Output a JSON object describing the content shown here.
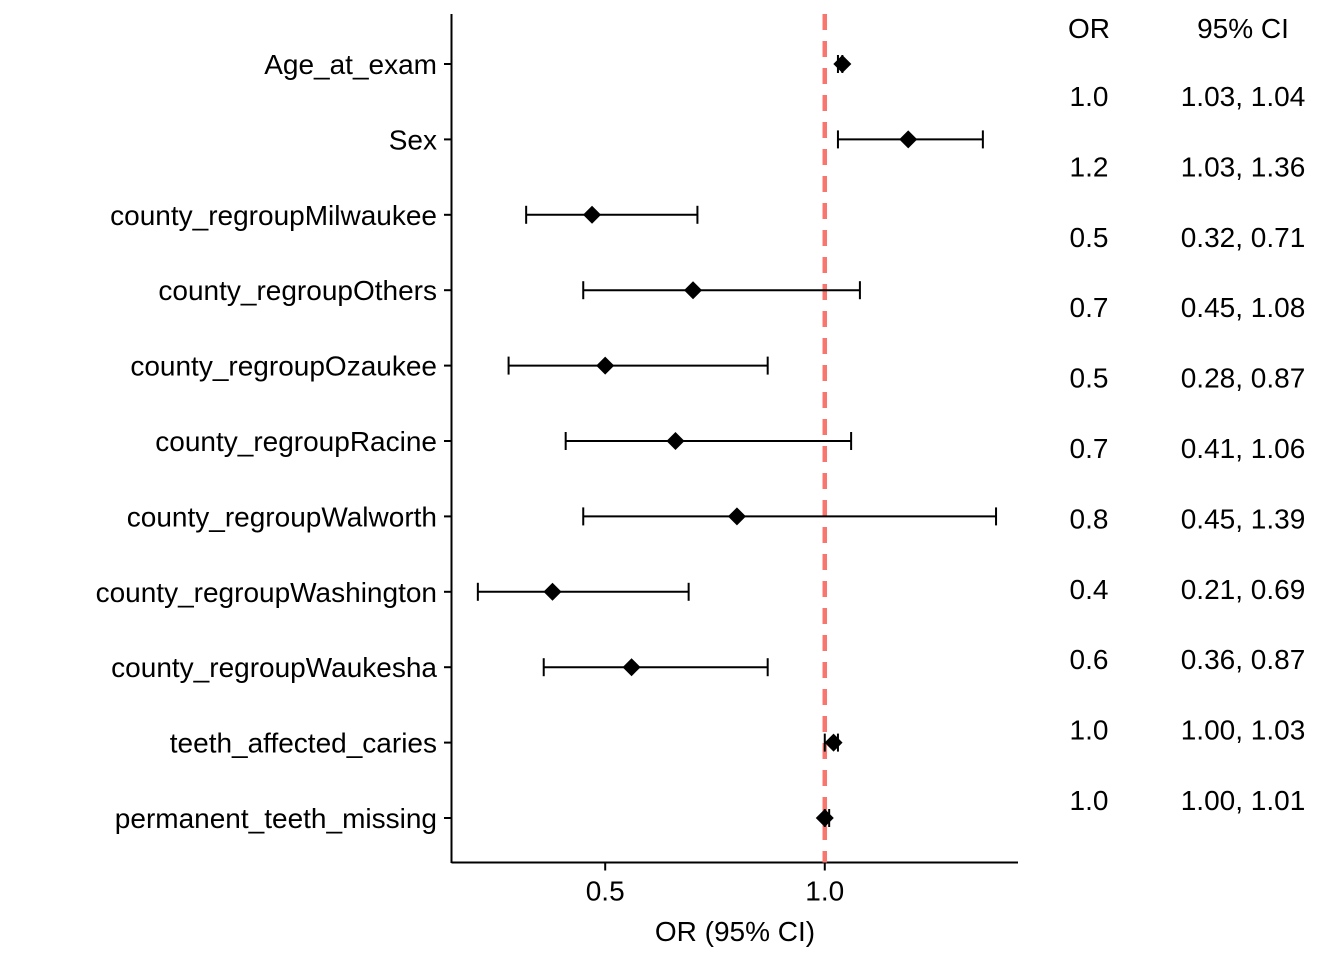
{
  "chart_data": {
    "type": "forest",
    "xlabel": "OR (95% CI)",
    "xlim": [
      0.15,
      1.44
    ],
    "x_ticks": [
      {
        "value": 0.5,
        "label": "0.5"
      },
      {
        "value": 1.0,
        "label": "1.0"
      }
    ],
    "reference_line": {
      "value": 1.0,
      "color": "#F8766D",
      "style": "dashed"
    },
    "columns": {
      "or_header": "OR",
      "ci_header": "95% CI"
    },
    "rows": [
      {
        "label": "Age_at_exam",
        "or": 1.04,
        "lower": 1.03,
        "upper": 1.04,
        "or_text": "1.0",
        "ci_text": "1.03, 1.04"
      },
      {
        "label": "Sex",
        "or": 1.19,
        "lower": 1.03,
        "upper": 1.36,
        "or_text": "1.2",
        "ci_text": "1.03, 1.36"
      },
      {
        "label": "county_regroupMilwaukee",
        "or": 0.47,
        "lower": 0.32,
        "upper": 0.71,
        "or_text": "0.5",
        "ci_text": "0.32, 0.71"
      },
      {
        "label": "county_regroupOthers",
        "or": 0.7,
        "lower": 0.45,
        "upper": 1.08,
        "or_text": "0.7",
        "ci_text": "0.45, 1.08"
      },
      {
        "label": "county_regroupOzaukee",
        "or": 0.5,
        "lower": 0.28,
        "upper": 0.87,
        "or_text": "0.5",
        "ci_text": "0.28, 0.87"
      },
      {
        "label": "county_regroupRacine",
        "or": 0.66,
        "lower": 0.41,
        "upper": 1.06,
        "or_text": "0.7",
        "ci_text": "0.41, 1.06"
      },
      {
        "label": "county_regroupWalworth",
        "or": 0.8,
        "lower": 0.45,
        "upper": 1.39,
        "or_text": "0.8",
        "ci_text": "0.45, 1.39"
      },
      {
        "label": "county_regroupWashington",
        "or": 0.38,
        "lower": 0.21,
        "upper": 0.69,
        "or_text": "0.4",
        "ci_text": "0.21, 0.69"
      },
      {
        "label": "county_regroupWaukesha",
        "or": 0.56,
        "lower": 0.36,
        "upper": 0.87,
        "or_text": "0.6",
        "ci_text": "0.36, 0.87"
      },
      {
        "label": "teeth_affected_caries",
        "or": 1.02,
        "lower": 1.0,
        "upper": 1.03,
        "or_text": "1.0",
        "ci_text": "1.00, 1.03"
      },
      {
        "label": "permanent_teeth_missing",
        "or": 1.0,
        "lower": 1.0,
        "upper": 1.01,
        "or_text": "1.0",
        "ci_text": "1.00, 1.01"
      }
    ],
    "marker_color": "#000000",
    "grid": false,
    "legend": "none"
  }
}
